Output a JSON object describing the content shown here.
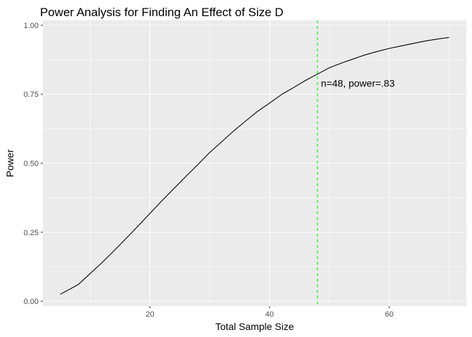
{
  "chart_data": {
    "type": "line",
    "title": "Power Analysis for Finding An Effect of Size D",
    "xlabel": "Total Sample Size",
    "ylabel": "Power",
    "xlim": [
      2.1,
      72.9
    ],
    "ylim": [
      -0.0178,
      1.0178
    ],
    "x_ticks": [
      20,
      40,
      60
    ],
    "x_tick_labels": [
      "20",
      "40",
      "60"
    ],
    "x_minor_ticks": [
      10,
      30,
      50,
      70
    ],
    "y_ticks": [
      0,
      0.25,
      0.5,
      0.75,
      1.0
    ],
    "y_tick_labels": [
      "0.00",
      "0.25",
      "0.50",
      "0.75",
      "1.00"
    ],
    "y_minor_ticks": [
      0.125,
      0.375,
      0.625,
      0.875
    ],
    "grid": true,
    "legend": "none",
    "series": [
      {
        "x": [
          5,
          8,
          10,
          12,
          14,
          16,
          18,
          20,
          22,
          24,
          26,
          28,
          30,
          32,
          34,
          36,
          38,
          40,
          42,
          44,
          46,
          48,
          50,
          52,
          54,
          56,
          58,
          60,
          62,
          64,
          66,
          68,
          70
        ],
        "values": [
          0.025,
          0.06,
          0.1,
          0.14,
          0.183,
          0.227,
          0.272,
          0.318,
          0.364,
          0.408,
          0.452,
          0.495,
          0.539,
          0.578,
          0.617,
          0.653,
          0.688,
          0.718,
          0.749,
          0.774,
          0.8,
          0.823,
          0.846,
          0.863,
          0.878,
          0.893,
          0.905,
          0.916,
          0.925,
          0.934,
          0.943,
          0.95,
          0.956
        ],
        "color": "#000000"
      }
    ],
    "reference_line": {
      "x": 48,
      "color": "#00ee00",
      "style": "dashed"
    },
    "annotation": {
      "x": 48,
      "y": 0.79,
      "text": "n=48, power=.83"
    },
    "colors": {
      "panel": "#ebebeb",
      "grid": "#ffffff",
      "tick_text": "#4d4d4d"
    }
  }
}
